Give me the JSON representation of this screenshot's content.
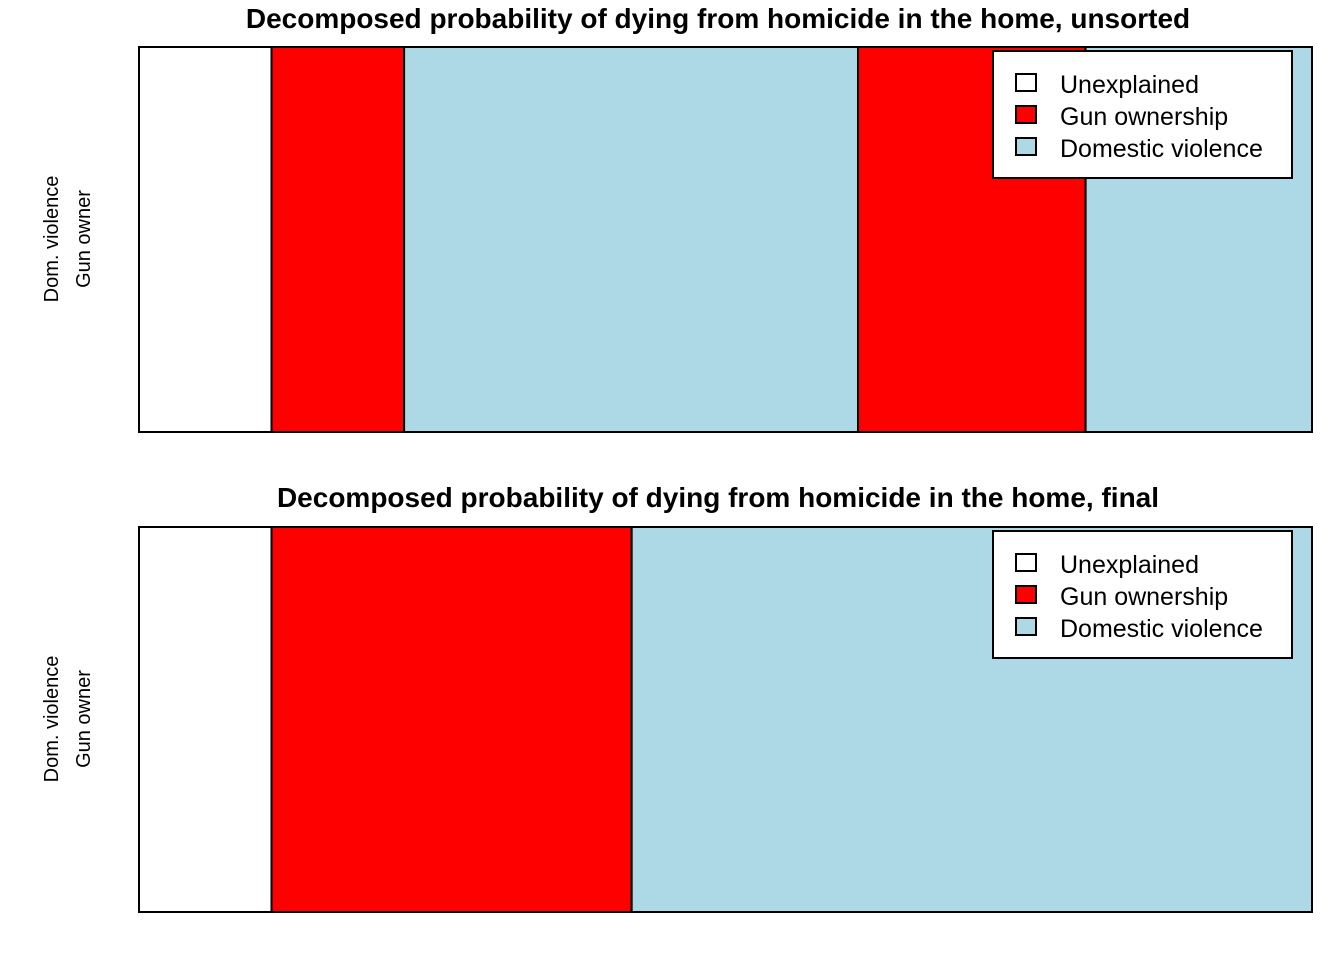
{
  "chart_data": [
    {
      "type": "bar",
      "orientation": "horizontal",
      "stacked": true,
      "title": "Decomposed probability of dying from homicide in the home, unsorted",
      "y_label_lines": [
        "Dom. violence",
        "Gun owner"
      ],
      "xlim": [
        0,
        1
      ],
      "segments": [
        {
          "series": "Unexplained",
          "value": 0.113
        },
        {
          "series": "Gun ownership",
          "value": 0.113
        },
        {
          "series": "Domestic violence",
          "value": 0.387
        },
        {
          "series": "Gun ownership",
          "value": 0.194
        },
        {
          "series": "Domestic violence",
          "value": 0.193
        }
      ],
      "legend": {
        "position": "top-right",
        "entries": [
          {
            "name": "Unexplained",
            "color": "#ffffff"
          },
          {
            "name": "Gun ownership",
            "color": "#ff0000"
          },
          {
            "name": "Domestic violence",
            "color": "#add8e6"
          }
        ]
      },
      "axes_shown": false,
      "grid": false
    },
    {
      "type": "bar",
      "orientation": "horizontal",
      "stacked": true,
      "title": "Decomposed probability of dying from homicide in the home, final",
      "y_label_lines": [
        "Dom. violence",
        "Gun owner"
      ],
      "xlim": [
        0,
        1
      ],
      "segments": [
        {
          "series": "Unexplained",
          "value": 0.113
        },
        {
          "series": "Gun ownership",
          "value": 0.307
        },
        {
          "series": "Domestic violence",
          "value": 0.58
        }
      ],
      "legend": {
        "position": "top-right",
        "entries": [
          {
            "name": "Unexplained",
            "color": "#ffffff"
          },
          {
            "name": "Gun ownership",
            "color": "#ff0000"
          },
          {
            "name": "Domestic violence",
            "color": "#add8e6"
          }
        ]
      },
      "axes_shown": false,
      "grid": false
    }
  ],
  "colors": {
    "Unexplained": "#ffffff",
    "Gun ownership": "#ff0000",
    "Domestic violence": "#add8e6"
  }
}
